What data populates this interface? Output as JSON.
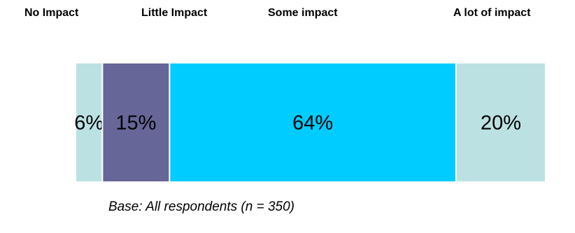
{
  "chart_data": {
    "type": "bar",
    "stacked": true,
    "orientation": "horizontal",
    "categories": [
      "No Impact",
      "Little Impact",
      "Some impact",
      "A lot of impact"
    ],
    "values": [
      6,
      15,
      64,
      20
    ],
    "value_labels": [
      "6%",
      "15%",
      "64%",
      "20%"
    ],
    "colors": [
      "#bce1e3",
      "#676699",
      "#00ccff",
      "#bce1e3"
    ],
    "footnote": "Base: All respondents (n = 350)"
  }
}
